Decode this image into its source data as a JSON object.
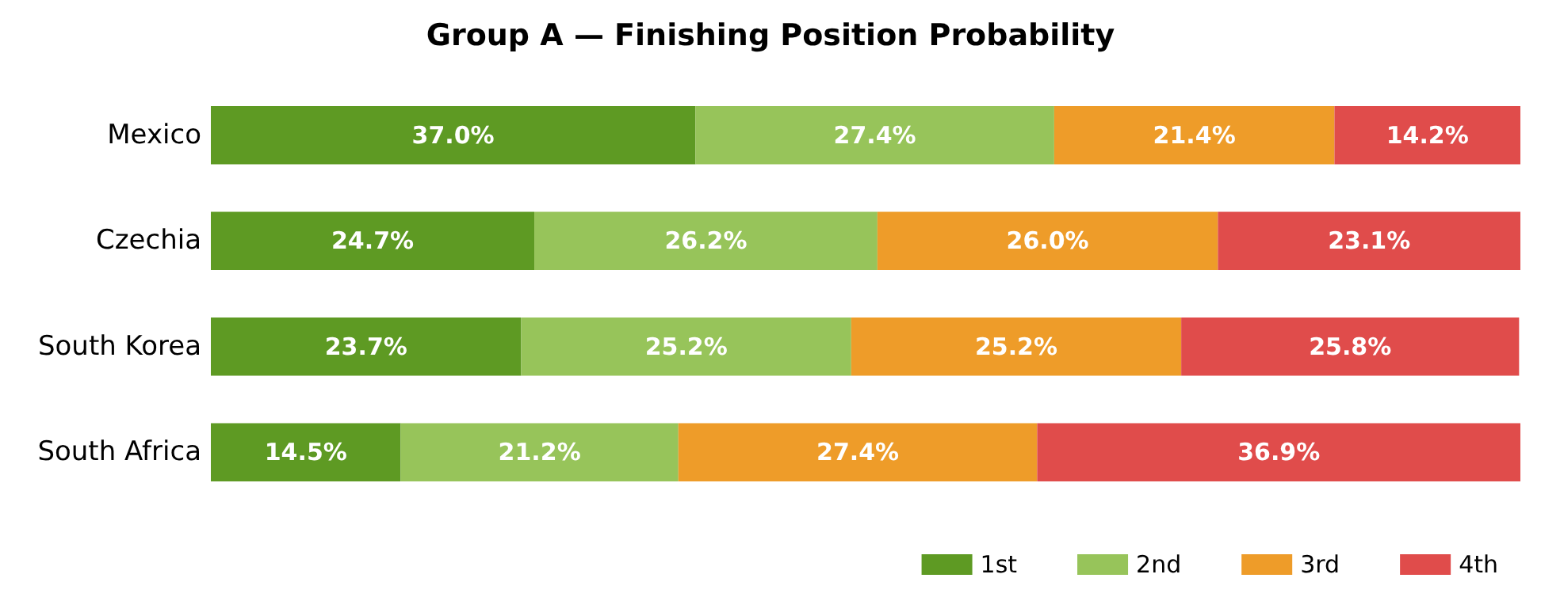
{
  "chart_data": {
    "type": "bar",
    "title": "Group A — Finishing Position Probability",
    "orientation": "horizontal",
    "stacked": true,
    "legend": "bottom right",
    "categories": [
      "Mexico",
      "Czechia",
      "South Korea",
      "South Africa"
    ],
    "series": [
      {
        "name": "1st",
        "color": "#5e9a23",
        "values": [
          37.0,
          24.7,
          23.7,
          14.5
        ],
        "value_labels": [
          "37.0%",
          "24.7%",
          "23.7%",
          "14.5%"
        ]
      },
      {
        "name": "2nd",
        "color": "#97c45a",
        "values": [
          27.4,
          26.2,
          25.2,
          21.2
        ],
        "value_labels": [
          "27.4%",
          "26.2%",
          "25.2%",
          "21.2%"
        ]
      },
      {
        "name": "3rd",
        "color": "#ee9c29",
        "values": [
          21.4,
          26.0,
          25.2,
          27.4
        ],
        "value_labels": [
          "21.4%",
          "26.0%",
          "25.2%",
          "27.4%"
        ]
      },
      {
        "name": "4th",
        "color": "#e04c4b",
        "values": [
          14.2,
          23.1,
          25.8,
          36.9
        ],
        "value_labels": [
          "14.2%",
          "23.1%",
          "25.8%",
          "36.9%"
        ]
      }
    ]
  }
}
